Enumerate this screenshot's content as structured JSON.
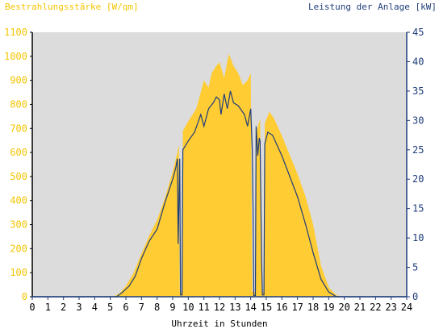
{
  "colors": {
    "background": "#ffffff",
    "plot_background": "#dcdcdc",
    "irradiance_fill": "#ffcc33",
    "irradiance_text": "#f5c400",
    "power_line": "#1f3d7a",
    "power_text": "#1f3d7a",
    "axis_text": "#000000"
  },
  "chart_data": {
    "type": "area",
    "left_axis_title": "Bestrahlungsstärke [W/qm]",
    "right_axis_title": "Leistung der Anlage [kW]",
    "xlabel": "Uhrzeit in Stunden",
    "xlim": [
      0,
      24
    ],
    "x_ticks": [
      0,
      1,
      2,
      3,
      4,
      5,
      6,
      7,
      8,
      9,
      10,
      11,
      12,
      13,
      14,
      15,
      16,
      17,
      18,
      19,
      20,
      21,
      22,
      23,
      24
    ],
    "y_left_lim": [
      0,
      1100
    ],
    "y_left_ticks": [
      0,
      100,
      200,
      300,
      400,
      500,
      600,
      700,
      800,
      900,
      1000,
      1100
    ],
    "y_right_lim": [
      0,
      45
    ],
    "y_right_ticks": [
      0,
      5,
      10,
      15,
      20,
      25,
      30,
      35,
      40,
      45
    ],
    "series": [
      {
        "name": "Bestrahlungsstärke [W/qm]",
        "axis": "left",
        "style": "area",
        "points": [
          [
            0,
            0
          ],
          [
            5.2,
            0
          ],
          [
            5.6,
            15
          ],
          [
            6,
            45
          ],
          [
            6.5,
            100
          ],
          [
            7,
            180
          ],
          [
            7.5,
            255
          ],
          [
            8,
            320
          ],
          [
            8.5,
            410
          ],
          [
            9,
            520
          ],
          [
            9.3,
            600
          ],
          [
            9.4,
            635
          ],
          [
            9.45,
            20
          ],
          [
            9.6,
            20
          ],
          [
            9.65,
            690
          ],
          [
            10,
            730
          ],
          [
            10.5,
            780
          ],
          [
            10.8,
            850
          ],
          [
            11,
            900
          ],
          [
            11.3,
            870
          ],
          [
            11.5,
            930
          ],
          [
            11.8,
            960
          ],
          [
            12,
            975
          ],
          [
            12.3,
            910
          ],
          [
            12.6,
            1010
          ],
          [
            12.9,
            960
          ],
          [
            13.2,
            930
          ],
          [
            13.5,
            880
          ],
          [
            13.8,
            900
          ],
          [
            14,
            930
          ],
          [
            14.1,
            20
          ],
          [
            14.3,
            20
          ],
          [
            14.35,
            680
          ],
          [
            14.6,
            740
          ],
          [
            14.75,
            20
          ],
          [
            14.85,
            20
          ],
          [
            14.9,
            720
          ],
          [
            15.2,
            770
          ],
          [
            15.5,
            740
          ],
          [
            16,
            670
          ],
          [
            16.5,
            590
          ],
          [
            17,
            510
          ],
          [
            17.5,
            420
          ],
          [
            18,
            300
          ],
          [
            18.5,
            130
          ],
          [
            19,
            40
          ],
          [
            19.5,
            5
          ],
          [
            20,
            0
          ],
          [
            24,
            0
          ]
        ]
      },
      {
        "name": "Leistung der Anlage [kW]",
        "axis": "right",
        "style": "line",
        "points": [
          [
            0,
            0
          ],
          [
            5.4,
            0
          ],
          [
            5.8,
            0.8
          ],
          [
            6.2,
            1.8
          ],
          [
            6.6,
            3.5
          ],
          [
            7,
            6.5
          ],
          [
            7.5,
            9.5
          ],
          [
            8,
            11.5
          ],
          [
            8.5,
            16
          ],
          [
            9,
            20
          ],
          [
            9.2,
            22
          ],
          [
            9.3,
            23.5
          ],
          [
            9.35,
            9
          ],
          [
            9.45,
            23.5
          ],
          [
            9.5,
            0.3
          ],
          [
            9.6,
            0.3
          ],
          [
            9.65,
            25
          ],
          [
            10,
            26.5
          ],
          [
            10.4,
            28
          ],
          [
            10.8,
            31
          ],
          [
            11,
            29
          ],
          [
            11.3,
            32
          ],
          [
            11.6,
            33
          ],
          [
            11.8,
            34
          ],
          [
            12,
            33.5
          ],
          [
            12.1,
            31
          ],
          [
            12.3,
            34.5
          ],
          [
            12.5,
            32
          ],
          [
            12.7,
            35
          ],
          [
            12.9,
            33
          ],
          [
            13.2,
            32.5
          ],
          [
            13.6,
            31
          ],
          [
            13.8,
            29
          ],
          [
            14,
            32
          ],
          [
            14.1,
            25
          ],
          [
            14.15,
            15
          ],
          [
            14.2,
            0.2
          ],
          [
            14.3,
            0.2
          ],
          [
            14.35,
            29
          ],
          [
            14.45,
            24
          ],
          [
            14.5,
            25.5
          ],
          [
            14.55,
            27
          ],
          [
            14.6,
            26.5
          ],
          [
            14.7,
            6
          ],
          [
            14.75,
            0.3
          ],
          [
            14.85,
            0.3
          ],
          [
            14.9,
            26
          ],
          [
            15,
            27
          ],
          [
            15.1,
            28
          ],
          [
            15.4,
            27.5
          ],
          [
            16,
            24
          ],
          [
            16.5,
            20.5
          ],
          [
            17,
            17
          ],
          [
            17.5,
            12.5
          ],
          [
            18,
            7.5
          ],
          [
            18.5,
            3
          ],
          [
            19,
            0.8
          ],
          [
            19.5,
            0
          ],
          [
            24,
            0
          ]
        ]
      }
    ]
  }
}
